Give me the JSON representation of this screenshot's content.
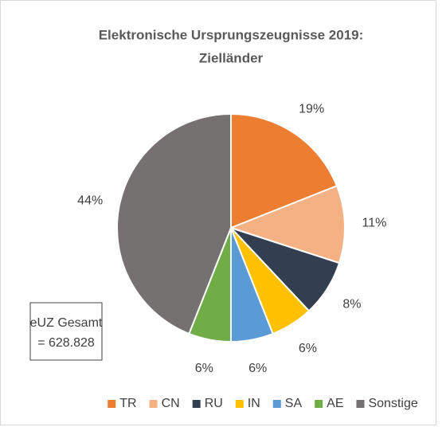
{
  "chart_data": {
    "type": "pie",
    "title_lines": [
      "Elektronische Ursprungszeugnisse 2019:",
      "Zielländer"
    ],
    "categories": [
      "TR",
      "CN",
      "RU",
      "IN",
      "SA",
      "AE",
      "Sonstige"
    ],
    "values": [
      19,
      11,
      8,
      6,
      6,
      6,
      44
    ],
    "value_labels": [
      "19%",
      "11%",
      "8%",
      "6%",
      "6%",
      "6%",
      "44%"
    ],
    "colors": [
      "#ed7d31",
      "#f4b183",
      "#333f50",
      "#ffc000",
      "#5b9bd5",
      "#70ad47",
      "#767171"
    ],
    "annotation": [
      "eUZ Gesamt",
      "= 628.828"
    ],
    "legend": "bottom"
  }
}
